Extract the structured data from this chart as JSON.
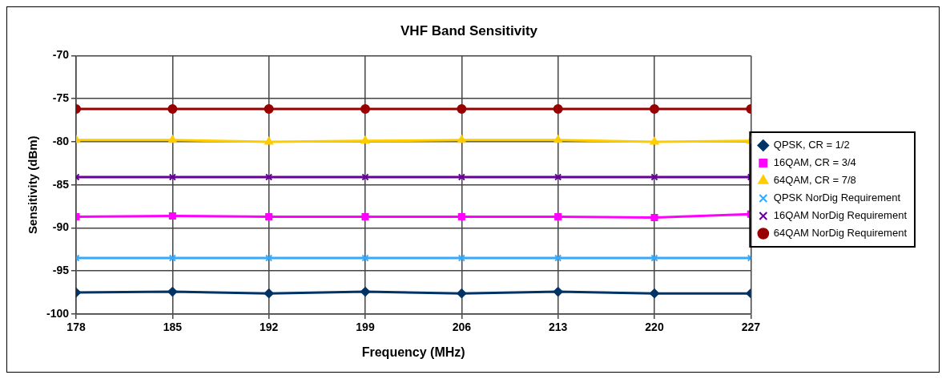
{
  "chart_data": {
    "type": "line",
    "title": "VHF Band Sensitivity",
    "xlabel": "Frequency (MHz)",
    "ylabel": "Sensitivity (dBm)",
    "x": [
      178,
      185,
      192,
      199,
      206,
      213,
      220,
      227
    ],
    "xlim": [
      178,
      227
    ],
    "xticks": [
      178,
      185,
      192,
      199,
      206,
      213,
      220,
      227
    ],
    "ylim": [
      -100,
      -70
    ],
    "yticks": [
      -100,
      -95,
      -90,
      -85,
      -80,
      -75,
      -70
    ],
    "grid": true,
    "legend": "right",
    "line_style": "solid",
    "series": [
      {
        "name": "QPSK, CR = 1/2",
        "color": "#003366",
        "marker": "diamond",
        "values": [
          -97.5,
          -97.4,
          -97.6,
          -97.4,
          -97.6,
          -97.4,
          -97.6,
          -97.6
        ]
      },
      {
        "name": "16QAM, CR = 3/4",
        "color": "#ff00ff",
        "marker": "square",
        "values": [
          -88.7,
          -88.6,
          -88.7,
          -88.7,
          -88.7,
          -88.7,
          -88.8,
          -88.4
        ]
      },
      {
        "name": "64QAM, CR = 7/8",
        "color": "#ffcc00",
        "marker": "triangle",
        "values": [
          -79.8,
          -79.8,
          -80,
          -79.9,
          -79.8,
          -79.8,
          -80,
          -79.9
        ]
      },
      {
        "name": "QPSK NorDig Requirement",
        "color": "#33aaff",
        "marker": "cross",
        "values": [
          -93.5,
          -93.5,
          -93.5,
          -93.5,
          -93.5,
          -93.5,
          -93.5,
          -93.5
        ]
      },
      {
        "name": "16QAM NorDig Requirement",
        "color": "#660099",
        "marker": "cross",
        "values": [
          -84.1,
          -84.1,
          -84.1,
          -84.1,
          -84.1,
          -84.1,
          -84.1,
          -84.1
        ]
      },
      {
        "name": "64QAM NorDig Requirement",
        "color": "#990000",
        "marker": "circle",
        "values": [
          -76.2,
          -76.2,
          -76.2,
          -76.2,
          -76.2,
          -76.2,
          -76.2,
          -76.2
        ]
      }
    ]
  }
}
